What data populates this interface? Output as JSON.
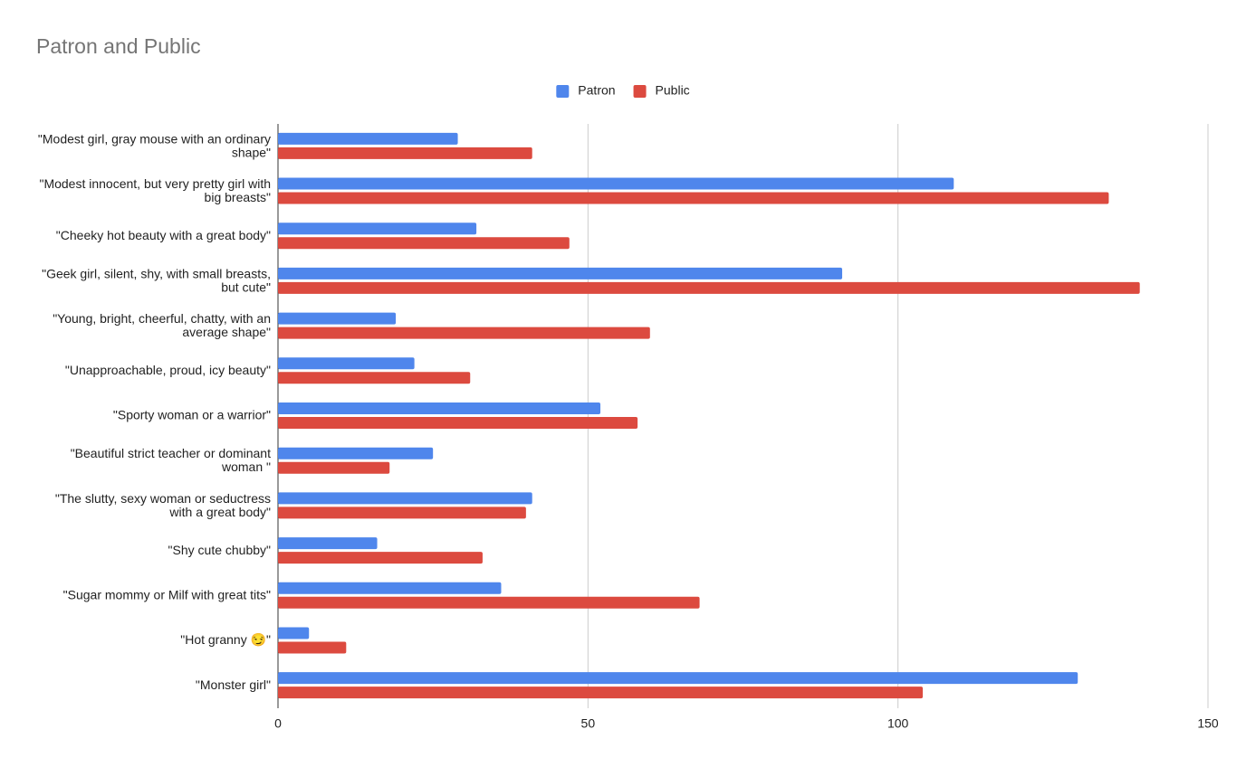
{
  "chart_data": {
    "type": "hbar",
    "title": "Patron and Public",
    "categories": [
      "\"Modest girl, gray mouse with an ordinary shape\"",
      "\"Modest innocent, but very pretty girl with big breasts\"",
      "\"Cheeky hot beauty with a great body\"",
      "\"Geek girl, silent, shy, with small breasts, but cute\"",
      "\"Young, bright, cheerful, chatty, with an average shape\"",
      "\"Unapproachable, proud, icy beauty\"",
      "\"Sporty woman or a warrior\"",
      "\"Beautiful strict teacher or dominant woman \"",
      "\"The slutty, sexy woman or seductress with a great body\"",
      "\"Shy cute chubby\"",
      "\"Sugar mommy or Milf with great tits\"",
      "\"Hot granny 😏\"",
      "\"Monster girl\""
    ],
    "series": [
      {
        "name": "Patron",
        "color": "#4f86ec",
        "values": [
          29,
          109,
          32,
          91,
          19,
          22,
          52,
          25,
          41,
          16,
          36,
          5,
          129
        ]
      },
      {
        "name": "Public",
        "color": "#dc4a3f",
        "values": [
          41,
          134,
          47,
          139,
          60,
          31,
          58,
          18,
          40,
          33,
          68,
          11,
          104
        ]
      }
    ],
    "xlim": [
      0,
      150
    ],
    "xticks": [
      0,
      50,
      100,
      150
    ],
    "grid": true,
    "legend": "top"
  }
}
